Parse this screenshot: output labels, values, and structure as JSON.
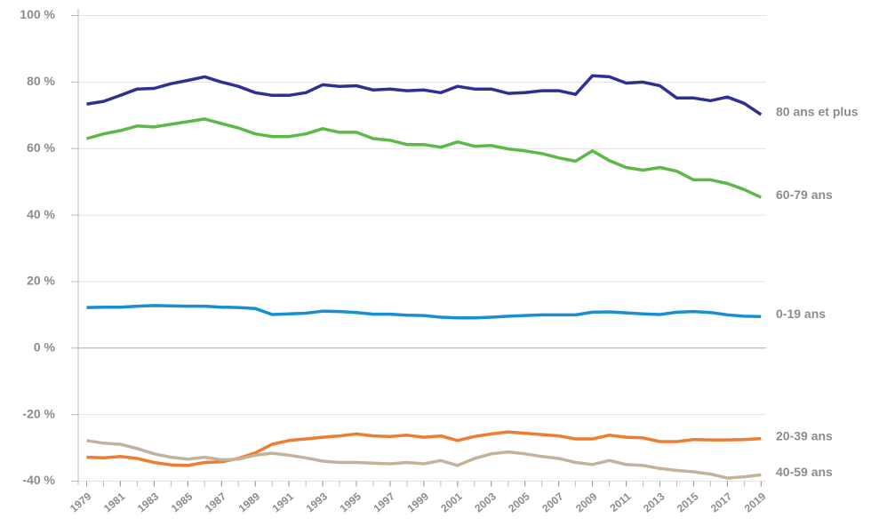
{
  "chart_data": {
    "type": "line",
    "x": [
      1979,
      1980,
      1981,
      1982,
      1983,
      1984,
      1985,
      1986,
      1987,
      1988,
      1989,
      1990,
      1991,
      1992,
      1993,
      1994,
      1995,
      1996,
      1997,
      1998,
      1999,
      2000,
      2001,
      2002,
      2003,
      2004,
      2005,
      2006,
      2007,
      2008,
      2009,
      2010,
      2011,
      2012,
      2013,
      2014,
      2015,
      2016,
      2017,
      2018,
      2019
    ],
    "xlim": [
      1978.5,
      2019.3
    ],
    "xticks": [
      1979,
      1981,
      1983,
      1985,
      1987,
      1989,
      1991,
      1993,
      1995,
      1997,
      1999,
      2001,
      2003,
      2005,
      2007,
      2009,
      2011,
      2013,
      2015,
      2017,
      2019
    ],
    "ylim": [
      -40,
      100
    ],
    "yticks": [
      {
        "value": -40,
        "label": "-40 %"
      },
      {
        "value": -20,
        "label": "-20 %"
      },
      {
        "value": 0,
        "label": "0 %"
      },
      {
        "value": 20,
        "label": "20 %"
      },
      {
        "value": 40,
        "label": "40 %"
      },
      {
        "value": 60,
        "label": "60 %"
      },
      {
        "value": 80,
        "label": "80 %"
      },
      {
        "value": 100,
        "label": "100 %"
      }
    ],
    "grid": true,
    "series": [
      {
        "name": "80 ans et plus",
        "color": "#2e3192",
        "values": [
          73.4,
          74.2,
          76,
          77.9,
          78.1,
          79.5,
          80.5,
          81.6,
          80,
          78.7,
          76.8,
          76,
          76,
          76.8,
          79.2,
          78.7,
          78.9,
          77.6,
          77.9,
          77.4,
          77.6,
          76.8,
          78.7,
          77.9,
          77.9,
          76.6,
          76.8,
          77.4,
          77.4,
          76.3,
          81.9,
          81.6,
          79.7,
          80,
          78.9,
          75.2,
          75.2,
          74.4,
          75.5,
          73.6,
          70.2
        ]
      },
      {
        "name": "60-79 ans",
        "color": "#5cb946",
        "values": [
          63,
          64.4,
          65.4,
          66.8,
          66.5,
          67.3,
          68.1,
          68.9,
          67.5,
          66.2,
          64.4,
          63.6,
          63.6,
          64.4,
          66,
          64.9,
          64.9,
          63,
          62.5,
          61.2,
          61.2,
          60.4,
          62,
          60.7,
          60.9,
          59.9,
          59.3,
          58.5,
          57.2,
          56.2,
          59.3,
          56.4,
          54.3,
          53.5,
          54.3,
          53.2,
          50.6,
          50.6,
          49.5,
          47.7,
          45.3
        ]
      },
      {
        "name": "0-19 ans",
        "color": "#1a8fd0",
        "values": [
          12.2,
          12.3,
          12.3,
          12.6,
          12.8,
          12.7,
          12.6,
          12.6,
          12.3,
          12.2,
          11.9,
          10.1,
          10.3,
          10.5,
          11.1,
          11,
          10.7,
          10.2,
          10.2,
          9.9,
          9.8,
          9.3,
          9.1,
          9.1,
          9.3,
          9.6,
          9.8,
          10,
          10,
          10,
          10.8,
          10.9,
          10.6,
          10.3,
          10.1,
          10.8,
          11,
          10.7,
          10,
          9.6,
          9.5
        ]
      },
      {
        "name": "20-39 ans",
        "color": "#ee7d31",
        "values": [
          -32.8,
          -33,
          -32.6,
          -33.2,
          -34.4,
          -35.1,
          -35.3,
          -34.4,
          -34.2,
          -33.2,
          -31.5,
          -28.9,
          -27.8,
          -27.3,
          -26.8,
          -26.4,
          -25.8,
          -26.4,
          -26.6,
          -26.2,
          -26.8,
          -26.4,
          -27.8,
          -26.6,
          -25.8,
          -25.2,
          -25.6,
          -26,
          -26.4,
          -27.3,
          -27.3,
          -26.2,
          -26.8,
          -27,
          -28.1,
          -28.1,
          -27.5,
          -27.6,
          -27.6,
          -27.5,
          -27.2
        ]
      },
      {
        "name": "40-59 ans",
        "color": "#c4b39c",
        "values": [
          -27.8,
          -28.6,
          -28.9,
          -30.2,
          -31.8,
          -32.8,
          -33.4,
          -32.8,
          -33.6,
          -33.4,
          -32.2,
          -31.6,
          -32.2,
          -33,
          -34,
          -34.4,
          -34.4,
          -34.6,
          -34.8,
          -34.4,
          -34.8,
          -33.8,
          -35.3,
          -33.2,
          -31.8,
          -31.2,
          -31.8,
          -32.6,
          -33.2,
          -34.4,
          -35,
          -33.8,
          -35,
          -35.3,
          -36.2,
          -36.8,
          -37.2,
          -37.9,
          -39.1,
          -38.7,
          -38.1
        ]
      }
    ]
  }
}
